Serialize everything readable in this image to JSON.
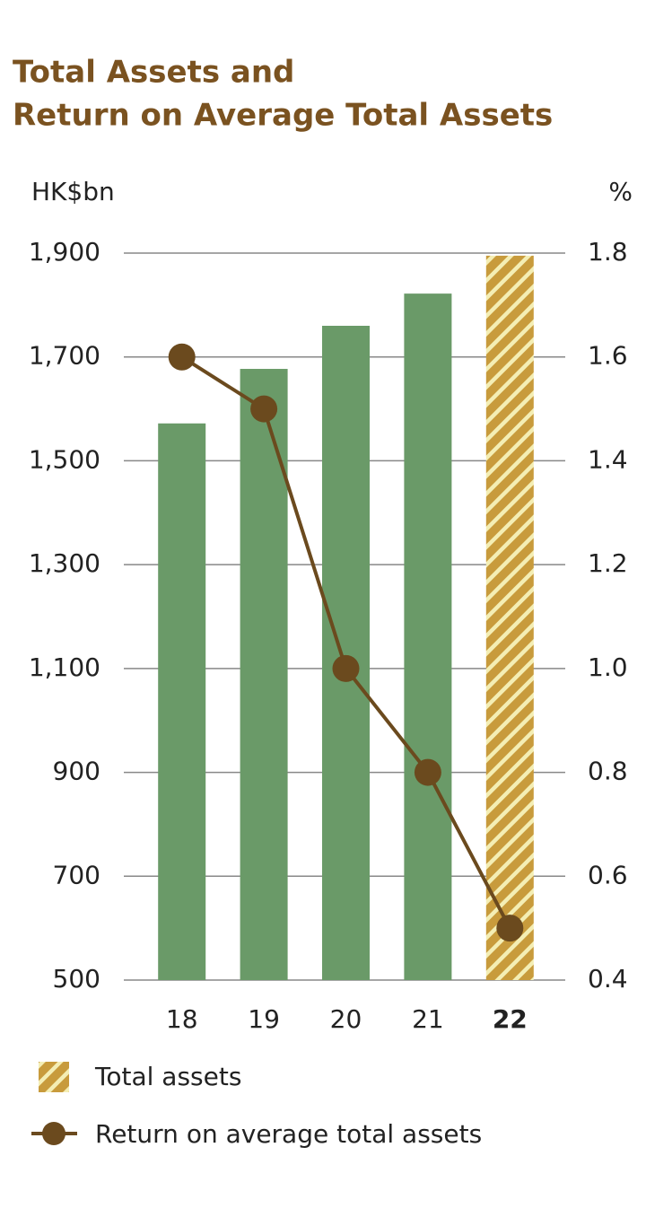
{
  "chart_data": {
    "type": "bar",
    "title": [
      "Total Assets and",
      "Return on Average Total Assets"
    ],
    "y_label": "HK$bn",
    "y2_label": "%",
    "categories": [
      "18",
      "19",
      "20",
      "21",
      "22"
    ],
    "series": [
      {
        "name": "Total assets",
        "type": "bar",
        "color": "#6a9a68",
        "highlight_color": "#c89b3c",
        "values": [
          1572,
          1677,
          1760,
          1822,
          1895
        ]
      },
      {
        "name": "Return on average total assets",
        "type": "line",
        "axis": "y2",
        "color": "#6b4a1e",
        "values": [
          1.6,
          1.5,
          1.0,
          0.8,
          0.5
        ]
      }
    ],
    "highlight_index": 4,
    "ylim": [
      500,
      1900
    ],
    "yticks": [
      500,
      700,
      900,
      {
        "value": 1100,
        "label": "1,100"
      },
      {
        "value": 1300,
        "label": "1,300"
      },
      {
        "value": 1500,
        "label": "1,500"
      },
      {
        "value": 1700,
        "label": "1,700"
      },
      {
        "value": 1900,
        "label": "1,900"
      }
    ],
    "y2lim": [
      0.4,
      1.8
    ],
    "y2ticks": [
      0.4,
      0.6,
      0.8,
      {
        "value": 1,
        "label": "1.0"
      },
      1.2,
      1.4,
      1.6,
      1.8
    ],
    "grid": true
  }
}
